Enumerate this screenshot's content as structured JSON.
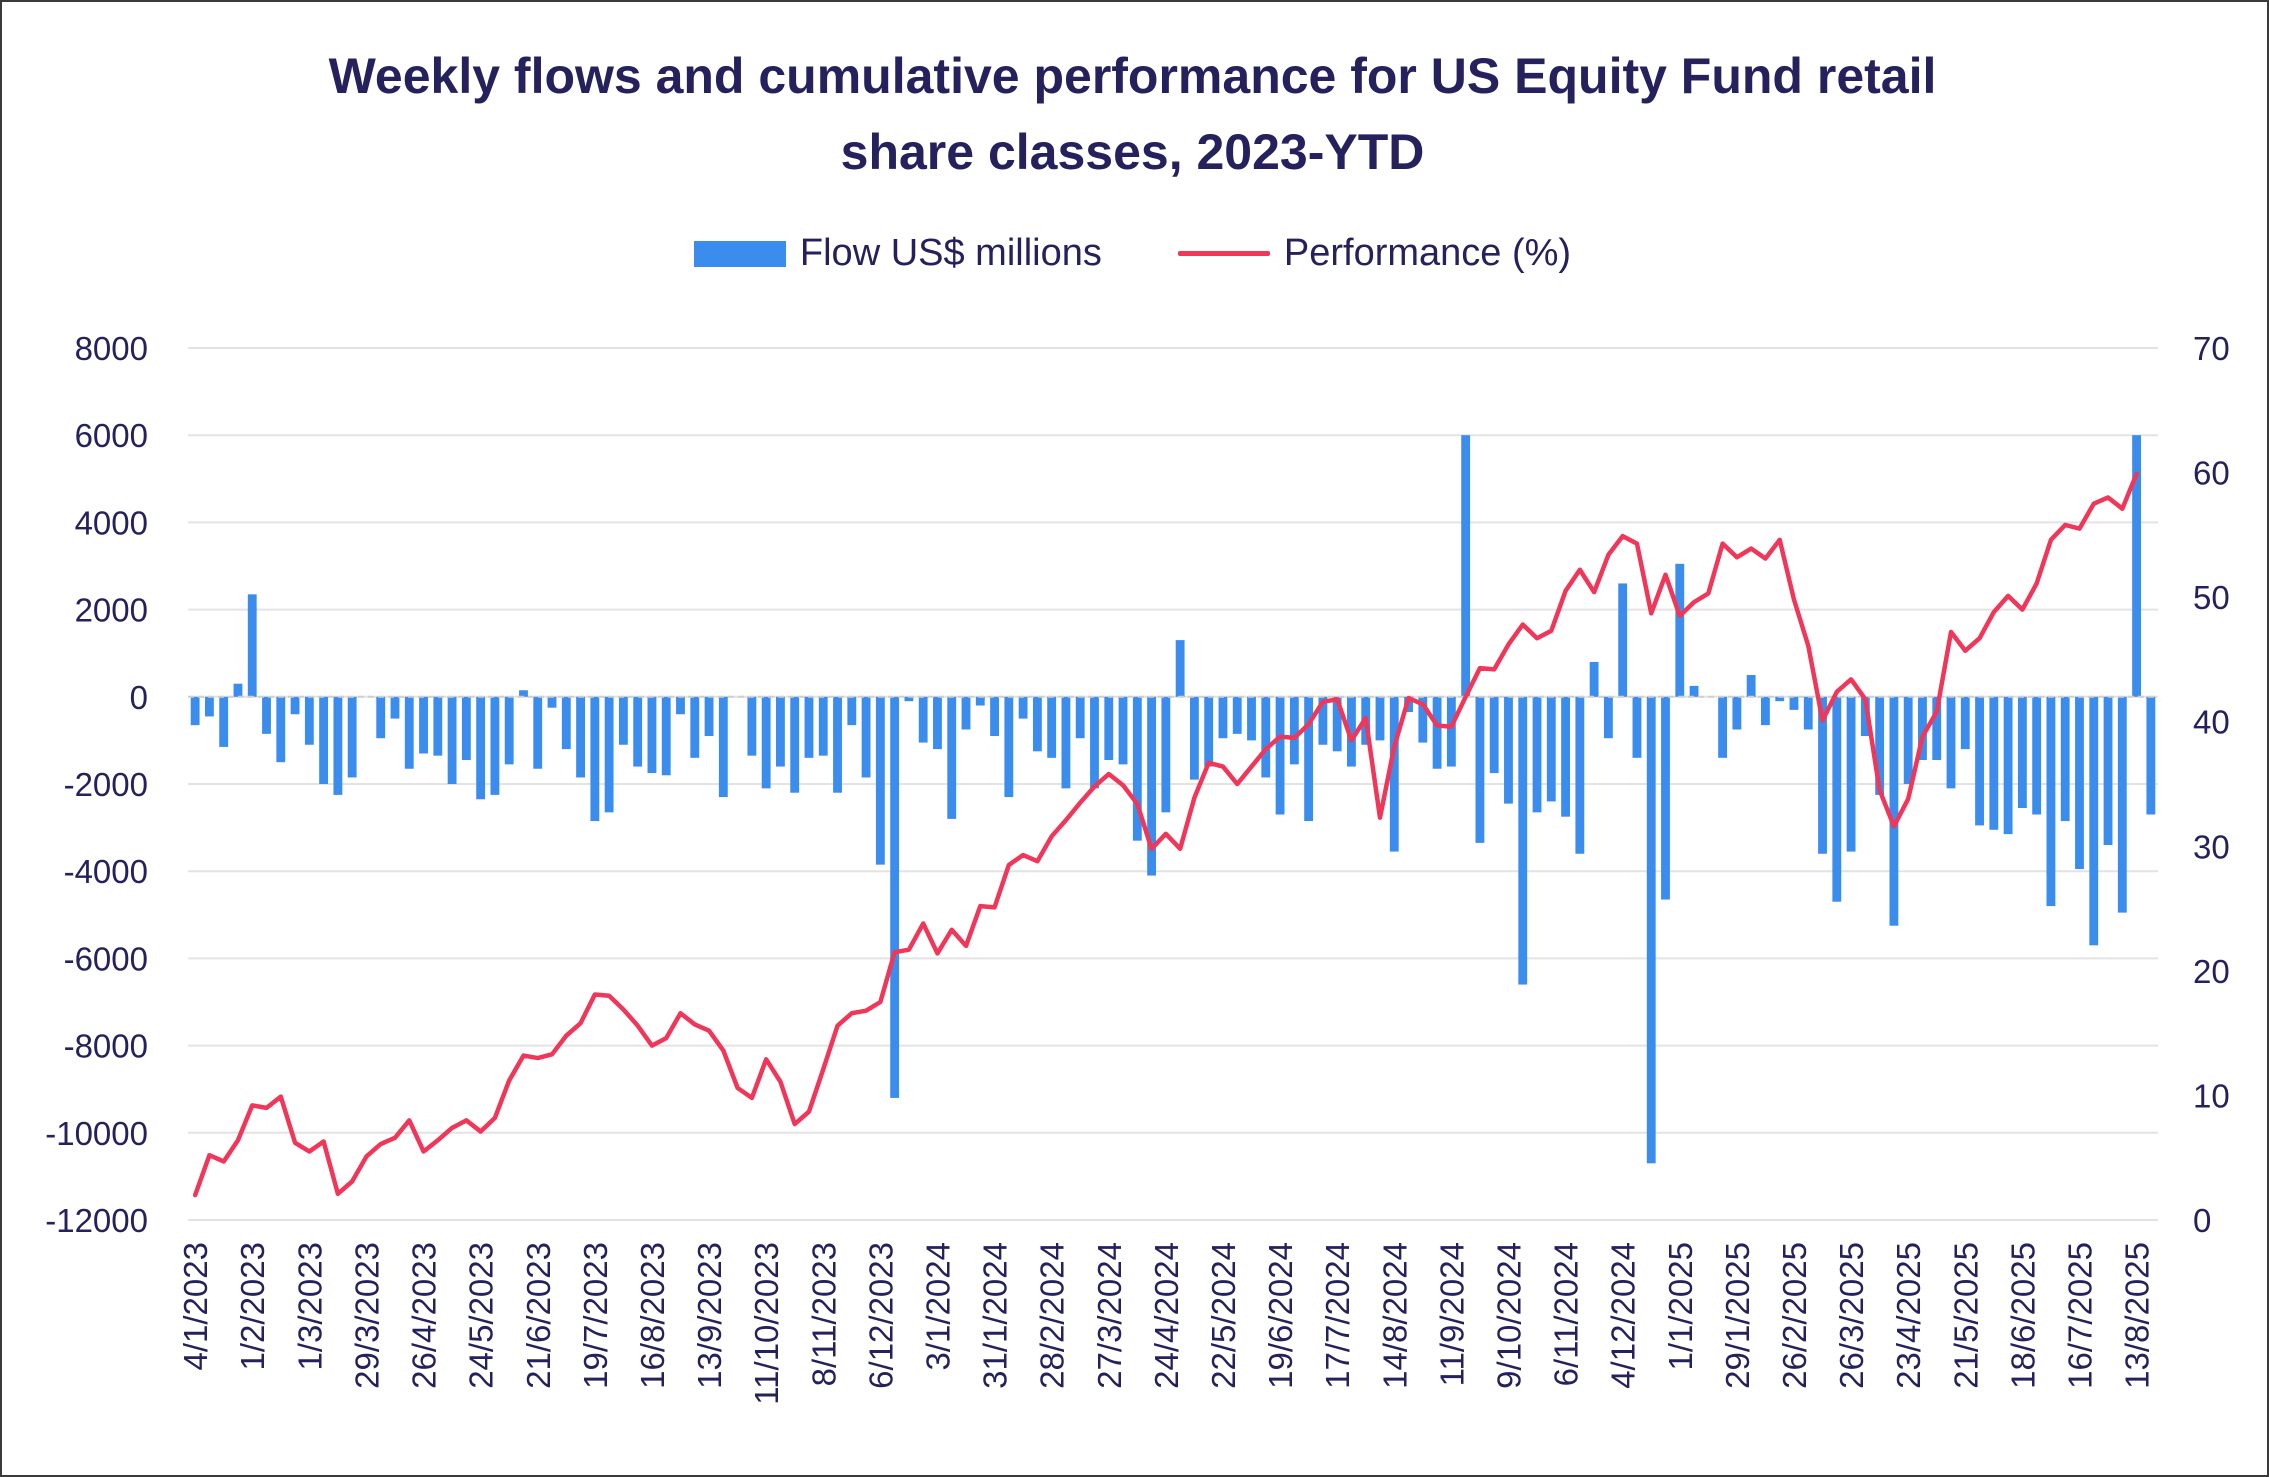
{
  "chart_data": {
    "type": "bar+line",
    "title": "Weekly flows and cumulative performance for US Equity Fund retail share classes, 2023-YTD",
    "title_line1": "Weekly flows and cumulative performance for US Equity Fund retail",
    "title_line2": "share classes, 2023-YTD",
    "legend_position": "top",
    "series": [
      {
        "name": "Flow US$ millions",
        "type": "bar",
        "axis": "left",
        "color": "#3b8ded"
      },
      {
        "name": "Performance (%)",
        "type": "line",
        "axis": "right",
        "color": "#f0375a"
      }
    ],
    "left_axis": {
      "min": -12000,
      "max": 8000,
      "ticks": [
        "8000",
        "6000",
        "4000",
        "2000",
        "0",
        "-2000",
        "-4000",
        "-6000",
        "-8000",
        "-10000",
        "-12000"
      ]
    },
    "right_axis": {
      "min": 0,
      "max": 70,
      "ticks": [
        "70",
        "60",
        "50",
        "40",
        "30",
        "20",
        "10",
        "0"
      ]
    },
    "grid": true,
    "x_tick_labels": [
      "4/1/2023",
      "1/2/2023",
      "1/3/2023",
      "29/3/2023",
      "26/4/2023",
      "24/5/2023",
      "21/6/2023",
      "19/7/2023",
      "16/8/2023",
      "13/9/2023",
      "11/10/2023",
      "8/11/2023",
      "6/12/2023",
      "3/1/2024",
      "31/1/2024",
      "28/2/2024",
      "27/3/2024",
      "24/4/2024",
      "22/5/2024",
      "19/6/2024",
      "17/7/2024",
      "14/8/2024",
      "11/9/2024",
      "9/10/2024",
      "6/11/2024",
      "4/12/2024",
      "1/1/2025",
      "29/1/2025",
      "26/2/2025",
      "26/3/2025",
      "23/4/2025",
      "21/5/2025",
      "18/6/2025",
      "16/7/2025",
      "13/8/2025"
    ],
    "flows": [
      -650,
      -450,
      -1150,
      300,
      2350,
      -850,
      -1500,
      -400,
      -1100,
      -2000,
      -2250,
      -1850,
      0,
      -950,
      -500,
      -1650,
      -1300,
      -1350,
      -2000,
      -1450,
      -2350,
      -2250,
      -1550,
      150,
      -1650,
      -250,
      -1200,
      -1850,
      -2850,
      -2650,
      -1100,
      -1600,
      -1750,
      -1800,
      -400,
      -1400,
      -900,
      -2300,
      0,
      -1350,
      -2100,
      -1600,
      -2200,
      -1400,
      -1350,
      -2200,
      -650,
      -1850,
      -3850,
      -9200,
      -100,
      -1050,
      -1200,
      -2800,
      -750,
      -200,
      -900,
      -2300,
      -500,
      -1250,
      -1400,
      -2100,
      -950,
      -2100,
      -1450,
      -1550,
      -3300,
      -4100,
      -2650,
      1300,
      -1900,
      -1600,
      -950,
      -850,
      -1000,
      -1850,
      -2700,
      -1550,
      -2850,
      -1100,
      -1250,
      -1600,
      -1100,
      -1000,
      -3550,
      -350,
      -1050,
      -1650,
      -1600,
      6000,
      -3350,
      -1750,
      -2450,
      -6600,
      -2650,
      -2400,
      -2750,
      -3600,
      800,
      -950,
      2600,
      -1400,
      -10700,
      -4650,
      3050,
      250,
      0,
      -1400,
      -750,
      500,
      -650,
      -100,
      -300,
      -750,
      -3600,
      -4700,
      -3550,
      -900,
      -2250,
      -5250,
      -2000,
      -1450,
      -1450,
      -2100,
      -1200,
      -2950,
      -3050,
      -3150,
      -2550,
      -2700,
      -4800,
      -2850,
      -3950,
      -5700,
      -3400,
      -4950,
      6000,
      -2700
    ],
    "performance": [
      2.0,
      5.2,
      4.7,
      6.4,
      9.2,
      9.0,
      9.9,
      6.2,
      5.5,
      6.3,
      2.1,
      3.1,
      5.1,
      6.1,
      6.6,
      8.0,
      5.5,
      6.4,
      7.4,
      8.0,
      7.1,
      8.2,
      11.2,
      13.2,
      13.0,
      13.3,
      14.8,
      15.8,
      18.1,
      18.0,
      16.9,
      15.6,
      14.0,
      14.6,
      16.6,
      15.7,
      15.2,
      13.6,
      10.6,
      9.8,
      12.9,
      11.1,
      7.7,
      8.7,
      12.1,
      15.6,
      16.6,
      16.8,
      17.5,
      21.5,
      21.7,
      23.8,
      21.4,
      23.3,
      22.0,
      25.2,
      25.1,
      28.5,
      29.3,
      28.8,
      30.8,
      32.1,
      33.5,
      34.8,
      35.8,
      34.9,
      33.4,
      29.8,
      31.0,
      29.8,
      33.9,
      36.7,
      36.4,
      35.0,
      36.4,
      37.8,
      38.8,
      38.7,
      39.8,
      41.6,
      41.8,
      38.5,
      40.3,
      32.3,
      38.0,
      41.9,
      41.4,
      39.7,
      39.6,
      42.0,
      44.3,
      44.2,
      46.2,
      47.8,
      46.7,
      47.3,
      50.5,
      52.2,
      50.4,
      53.4,
      54.9,
      54.3,
      48.7,
      51.8,
      48.5,
      49.6,
      50.3,
      54.3,
      53.2,
      53.9,
      53.1,
      54.6,
      49.8,
      46.1,
      40.1,
      42.4,
      43.4,
      41.8,
      34.5,
      31.6,
      33.8,
      38.8,
      40.8,
      47.2,
      45.7,
      46.7,
      48.8,
      50.1,
      49.0,
      51.1,
      54.6,
      55.8,
      55.5,
      57.5,
      58.0,
      57.1,
      59.9
    ]
  }
}
